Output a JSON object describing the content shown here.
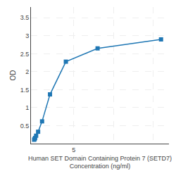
{
  "chart_data": {
    "type": "line",
    "x": [
      0,
      0.0625,
      0.125,
      0.25,
      0.5,
      1.0,
      2.0,
      4.0,
      8.0,
      16.0
    ],
    "values": [
      0.108,
      0.13,
      0.158,
      0.22,
      0.33,
      0.62,
      1.37,
      2.28,
      2.65,
      2.9
    ],
    "marker": "square",
    "xlabel": "Human SET Domain Containing Protein 7 (SETD7)\nConcentration (ng/ml)",
    "ylabel": "OD",
    "xlim": [
      -0.4,
      17
    ],
    "xticks": [
      5,
      {
        "value": 10,
        "label": null
      },
      {
        "value": 15,
        "label": null
      }
    ],
    "ylim": [
      0,
      3.8
    ],
    "yticks": [
      0.5,
      1.0,
      1.5,
      2.0,
      2.5,
      3.0,
      3.5
    ],
    "grid": true
  }
}
